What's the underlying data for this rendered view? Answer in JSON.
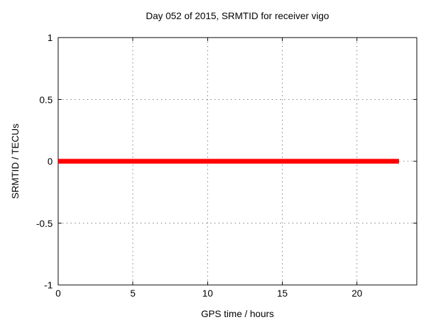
{
  "chart_data": {
    "type": "line",
    "title": "Day 052 of 2015, SRMTID for receiver vigo",
    "xlabel": "GPS time / hours",
    "ylabel": "SRMTID / TECUs",
    "xlim": [
      0,
      24
    ],
    "ylim": [
      -1,
      1
    ],
    "xticks": [
      0,
      5,
      10,
      15,
      20
    ],
    "xtick_labels": [
      "0",
      "5",
      "10",
      "15",
      "20"
    ],
    "yticks": [
      -1,
      -0.5,
      0,
      0.5,
      1
    ],
    "ytick_labels": [
      "-1",
      "-0.5",
      "0",
      "0.5",
      "1"
    ],
    "grid": "dashed",
    "legend": "none",
    "series": [
      {
        "name": "SRMTID",
        "color": "#ff0000",
        "linewidth": 7,
        "x": [
          0,
          22.8
        ],
        "y": [
          0,
          0
        ]
      }
    ],
    "colors": {
      "background": "#ffffff",
      "border": "#000000",
      "grid": "#9b9b9b",
      "text": "#000000",
      "line": "#ff0000"
    }
  }
}
